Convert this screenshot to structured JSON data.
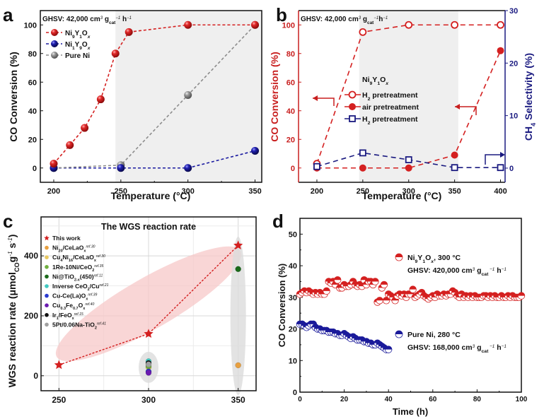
{
  "chart_data": [
    {
      "id": "a",
      "panel_label": "a",
      "type": "line",
      "annotation": {
        "text": "GHSV: 42,000 cm",
        "sup1": "3",
        "g": " g",
        "sub": "cat",
        "sup2": "−1",
        "h": " h",
        "sup3": "−1"
      },
      "xlabel": "Temperature (°C)",
      "ylabel": "CO Conversion (%)",
      "xlim": [
        190,
        355
      ],
      "ylim": [
        -10,
        110
      ],
      "xticks": [
        200,
        250,
        300,
        350
      ],
      "yticks": [
        0,
        20,
        40,
        60,
        80,
        100
      ],
      "shaded_region_x": [
        246,
        355
      ],
      "series": [
        {
          "name": "Ni9Y1Ox",
          "label_parts": [
            "Ni",
            "9",
            "Y",
            "1",
            "O",
            "x"
          ],
          "color": "#d42020",
          "x": [
            200,
            212,
            223,
            235,
            246,
            256,
            300,
            350
          ],
          "y": [
            3,
            16,
            28,
            48,
            80,
            95,
            100,
            100
          ]
        },
        {
          "name": "Ni1Y9Ox",
          "label_parts": [
            "Ni",
            "1",
            "Y",
            "9",
            "O",
            "x"
          ],
          "color": "#1a1aa0",
          "x": [
            200,
            250,
            300,
            350
          ],
          "y": [
            0,
            0,
            0,
            12
          ]
        },
        {
          "name": "Pure Ni",
          "label_parts": [
            "Pure Ni"
          ],
          "color": "#8c8c8c",
          "x": [
            200,
            250,
            300,
            350
          ],
          "y": [
            0,
            2,
            51,
            100
          ]
        }
      ]
    },
    {
      "id": "b",
      "panel_label": "b",
      "type": "line",
      "annotation": {
        "text": "GHSV: 42,000 cm",
        "sup1": "3",
        "g": " g",
        "sub": "cat",
        "sup2": "−1",
        "h": "h",
        "sup3": "−1"
      },
      "xlabel": "Temperature (°C)",
      "ylabel": "CO Conversion (%)",
      "ylabel_right": "CH4 Selectivity (%)",
      "xlim": [
        180,
        405
      ],
      "ylim": [
        -10,
        110
      ],
      "ylim_right": [
        -2.7,
        30
      ],
      "xticks": [
        200,
        250,
        300,
        350,
        400
      ],
      "yticks": [
        0,
        20,
        40,
        60,
        80,
        100
      ],
      "yticks_right": [
        0,
        10,
        20,
        30
      ],
      "shaded_region_x": [
        246,
        354
      ],
      "legend_title": "Ni9Y1Ox",
      "series": [
        {
          "name": "H2 pretreatment",
          "axis": "left",
          "marker": "open-circle",
          "color": "#d42020",
          "x": [
            200,
            250,
            300,
            350,
            400
          ],
          "y": [
            3,
            95,
            100,
            100,
            100
          ]
        },
        {
          "name": "air pretreatment",
          "axis": "left",
          "marker": "filled-circle",
          "color": "#d42020",
          "x": [
            200,
            250,
            300,
            350,
            400
          ],
          "y": [
            0,
            0,
            0,
            9,
            82
          ]
        },
        {
          "name": "H2 pretreatment",
          "axis": "right",
          "marker": "open-square",
          "color": "#1a1a80",
          "x": [
            200,
            250,
            300,
            350,
            400
          ],
          "y": [
            0.3,
            2.9,
            1.6,
            0.1,
            0.1
          ]
        }
      ]
    },
    {
      "id": "c",
      "panel_label": "c",
      "type": "scatter",
      "title": "The WGS reaction rate",
      "xlabel": "",
      "ylabel": "WGS reaction rate (μmolCO g−1 s−1)",
      "xlim": [
        240,
        360
      ],
      "ylim": [
        -50,
        530
      ],
      "xticks": [
        250,
        300,
        350
      ],
      "yticks": [
        0,
        200,
        400
      ],
      "grid": true,
      "this_work": {
        "name": "This work",
        "color": "#d42020",
        "x": [
          250,
          300,
          350
        ],
        "y": [
          36,
          140,
          435
        ]
      },
      "references": [
        {
          "name": "Ni20/CeLaOx",
          "ref": "ref.30",
          "color": "#e8a040",
          "x": 350,
          "y": 35
        },
        {
          "name": "Cu4Ni16/CeLaOx",
          "ref": "ref.30",
          "color": "#e8c860",
          "x": 300,
          "y": 28
        },
        {
          "name": "1Re-10Ni/CeO2",
          "ref": "ref.35",
          "color": "#70b040",
          "x": 300,
          "y": 32
        },
        {
          "name": "Ni@TiO2-x(450)",
          "ref": "ref.11",
          "color": "#1a6a1a",
          "x": 350,
          "y": 356
        },
        {
          "name": "Inverse CeO2/Cu",
          "ref": "ref.21",
          "color": "#40c8c0",
          "x": 300,
          "y": 48
        },
        {
          "name": "Cu-Ce(La)Ox",
          "ref": "ref.39",
          "color": "#2a3ad0",
          "x": 300,
          "y": 14
        },
        {
          "name": "Cu0.3Fe0.7Ox",
          "ref": "ref.40",
          "color": "#6a1ab0",
          "x": 300,
          "y": 10
        },
        {
          "name": "Ir1/FeOx",
          "ref": "ref.15",
          "color": "#101010",
          "x": 300,
          "y": 42
        },
        {
          "name": "5Pt/0.06Na-TiO2",
          "ref": "ref.41",
          "color": "#a0a0a0",
          "x": 300,
          "y": 38
        }
      ],
      "legend_labels": [
        {
          "base": "This work",
          "parts": [
            [
              "This work",
              ""
            ]
          ]
        },
        {
          "parts": [
            [
              "Ni",
              ""
            ],
            [
              "20",
              "sub"
            ],
            [
              "/CeLaO",
              ""
            ],
            [
              "x",
              "sub"
            ],
            [
              "ref.30",
              "sup"
            ]
          ]
        },
        {
          "parts": [
            [
              "Cu",
              ""
            ],
            [
              "4",
              "sub"
            ],
            [
              "Ni",
              ""
            ],
            [
              "16",
              "sub"
            ],
            [
              "/CeLaO",
              ""
            ],
            [
              "x",
              "sub"
            ],
            [
              "ref.30",
              "sup"
            ]
          ]
        },
        {
          "parts": [
            [
              "1Re-10Ni/CeO",
              ""
            ],
            [
              "2",
              "sub"
            ],
            [
              "ref.35",
              "sup"
            ]
          ]
        },
        {
          "parts": [
            [
              "Ni@TiO",
              ""
            ],
            [
              "2-x",
              "sub"
            ],
            [
              "(450)",
              ""
            ],
            [
              "ref.11",
              "sup"
            ]
          ]
        },
        {
          "parts": [
            [
              "Inverse CeO",
              ""
            ],
            [
              "2",
              "sub"
            ],
            [
              "/Cu",
              ""
            ],
            [
              "ref.21",
              "sup"
            ]
          ]
        },
        {
          "parts": [
            [
              "Cu-Ce(La)O",
              ""
            ],
            [
              "x",
              "sub"
            ],
            [
              "ref.39",
              "sup"
            ]
          ]
        },
        {
          "parts": [
            [
              "Cu",
              ""
            ],
            [
              "0.3",
              "sub"
            ],
            [
              "Fe",
              ""
            ],
            [
              "0.7",
              "sub"
            ],
            [
              "O",
              ""
            ],
            [
              "x",
              "sub"
            ],
            [
              "ref.40",
              "sup"
            ]
          ]
        },
        {
          "parts": [
            [
              "Ir",
              ""
            ],
            [
              "1",
              "sub"
            ],
            [
              "/FeO",
              ""
            ],
            [
              "x",
              "sub"
            ],
            [
              "ref.15",
              "sup"
            ]
          ]
        },
        {
          "parts": [
            [
              "5Pt/0.06Na-TiO",
              ""
            ],
            [
              "2",
              "sub"
            ],
            [
              "ref.41",
              "sup"
            ]
          ]
        }
      ]
    },
    {
      "id": "d",
      "panel_label": "d",
      "type": "scatter",
      "xlabel": "Time (h)",
      "ylabel": "CO Conversion (%)",
      "xlim": [
        0,
        100
      ],
      "ylim": [
        0,
        55
      ],
      "xticks": [
        0,
        20,
        40,
        60,
        80,
        100
      ],
      "yticks": [
        0,
        10,
        20,
        30,
        40,
        50
      ],
      "series": [
        {
          "name": "Ni9Y1Ox, 300 °C",
          "label_parts": [
            [
              "Ni",
              ""
            ],
            [
              "9",
              "sub"
            ],
            [
              "Y",
              ""
            ],
            [
              "1",
              "sub"
            ],
            [
              "O",
              ""
            ],
            [
              "x",
              "sub-italic"
            ],
            [
              ", 300 °C",
              ""
            ]
          ],
          "ghsv_parts": [
            [
              "GHSV: 420,000 cm",
              ""
            ],
            [
              "3",
              "sup"
            ],
            [
              " g",
              ""
            ],
            [
              "cat",
              "sub"
            ],
            [
              " −1",
              "sup"
            ],
            [
              " h",
              ""
            ],
            [
              "−1",
              "sup"
            ]
          ],
          "color": "#d42020",
          "x": [
            0,
            1,
            2,
            3,
            4,
            5,
            6,
            7,
            8,
            9,
            10,
            11,
            12,
            13,
            14,
            15,
            16,
            17,
            18,
            19,
            20,
            21,
            22,
            23,
            24,
            25,
            26,
            27,
            28,
            29,
            30,
            31,
            32,
            33,
            34,
            35,
            36,
            37,
            38,
            39,
            40,
            41,
            42,
            43,
            44,
            45,
            46,
            47,
            48,
            49,
            50,
            51,
            52,
            53,
            54,
            55,
            56,
            57,
            58,
            59,
            60,
            61,
            62,
            63,
            64,
            65,
            66,
            67,
            68,
            69,
            70,
            71,
            72,
            73,
            74,
            75,
            76,
            77,
            78,
            79,
            80,
            81,
            82,
            83,
            84,
            85,
            86,
            87,
            88,
            89,
            90,
            91,
            92,
            93,
            94,
            95,
            96,
            97,
            98,
            99,
            100
          ],
          "y": [
            31,
            31.5,
            32,
            31.5,
            32,
            31.5,
            31,
            31.5,
            31,
            31.5,
            31,
            31,
            32,
            35,
            34.5,
            35,
            34,
            35.5,
            33,
            33,
            34,
            33.5,
            33.5,
            34,
            35,
            34,
            33.5,
            34,
            33.5,
            35.5,
            34,
            35,
            35,
            34,
            35,
            28.5,
            29,
            33,
            34,
            29,
            31,
            30.5,
            30,
            29,
            30.5,
            31,
            30.5,
            31,
            30,
            31,
            31,
            32.5,
            30,
            30.5,
            31,
            31.5,
            30.5,
            30,
            29.5,
            30,
            30.5,
            30,
            31,
            30.5,
            30.5,
            31,
            30.5,
            31,
            31,
            32,
            31.5,
            30.5,
            30,
            31,
            30,
            30.5,
            30,
            30.5,
            30,
            30.5,
            30,
            30,
            30,
            30.5,
            30.5,
            30,
            30.5,
            30,
            30.5,
            30,
            30,
            30.5,
            30,
            30,
            30.5,
            30,
            30.5,
            30,
            30,
            30,
            30.5
          ]
        },
        {
          "name": "Pure Ni, 280 °C",
          "label_parts": [
            [
              "Pure Ni, 280 °C",
              ""
            ]
          ],
          "ghsv_parts": [
            [
              "GHSV: 168,000 cm",
              ""
            ],
            [
              "3",
              "sup"
            ],
            [
              " g",
              ""
            ],
            [
              "cat",
              "sub"
            ],
            [
              " −1",
              "sup"
            ],
            [
              " h",
              ""
            ],
            [
              "−1",
              "sup"
            ]
          ],
          "color": "#1a1a9a",
          "x": [
            0,
            1,
            2,
            3,
            4,
            5,
            6,
            7,
            8,
            9,
            10,
            11,
            12,
            13,
            14,
            15,
            16,
            17,
            18,
            19,
            20,
            21,
            22,
            23,
            24,
            25,
            26,
            27,
            28,
            29,
            30,
            31,
            32,
            33,
            34,
            35,
            36,
            37,
            38,
            39,
            40
          ],
          "y": [
            21.5,
            21.5,
            21,
            20.5,
            21,
            21.5,
            21.5,
            20.5,
            20,
            20,
            19.5,
            19.5,
            19.5,
            19,
            19,
            19,
            18.5,
            18.5,
            18,
            18,
            18.5,
            18,
            17.5,
            17,
            17.5,
            17,
            16.5,
            16.5,
            16.5,
            16,
            16,
            15.5,
            15.5,
            15,
            15,
            15.5,
            15,
            14.5,
            14,
            13.5,
            13.5
          ]
        }
      ]
    }
  ]
}
